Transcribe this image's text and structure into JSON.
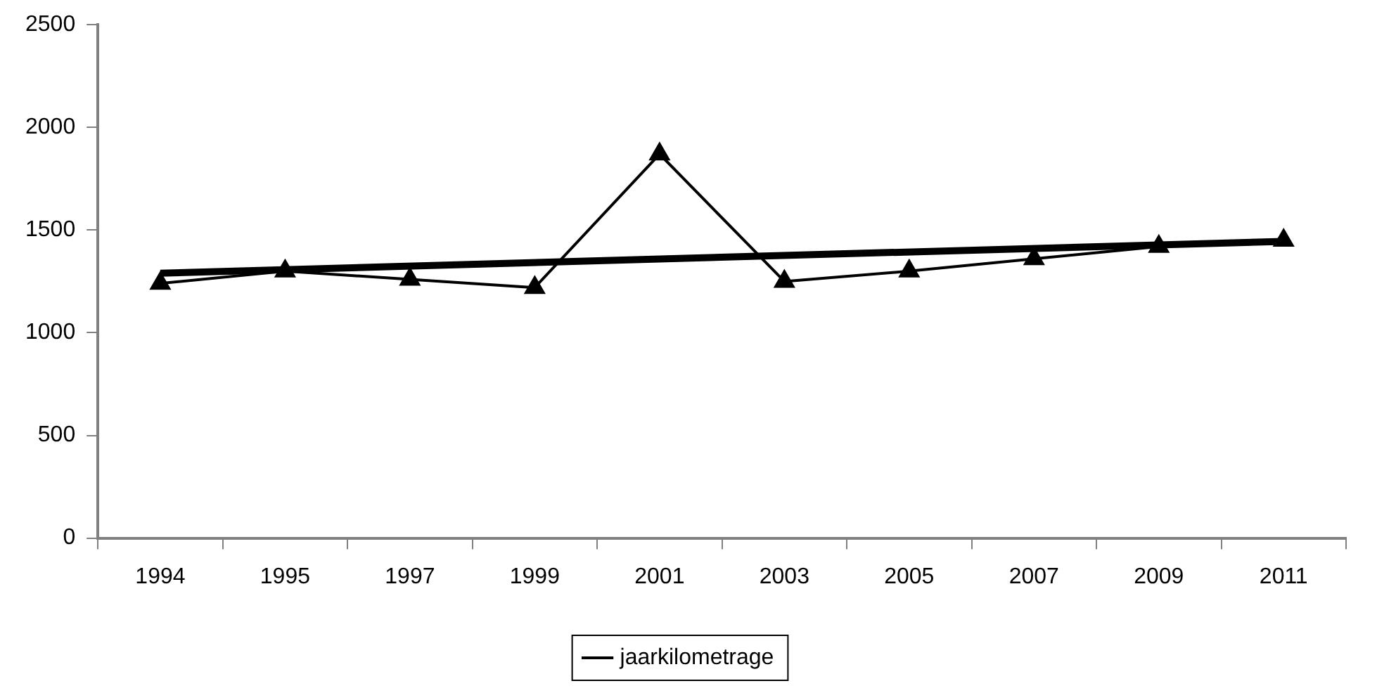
{
  "chart_data": {
    "type": "line",
    "categories": [
      "1994",
      "1995",
      "1997",
      "1999",
      "2001",
      "2003",
      "2005",
      "2007",
      "2009",
      "2011"
    ],
    "series": [
      {
        "name": "jaarkilometrage",
        "color": "#000000",
        "marker": "triangle",
        "values": [
          1240,
          1300,
          1260,
          1220,
          1870,
          1250,
          1300,
          1360,
          1420,
          1450
        ]
      },
      {
        "color": "#000000",
        "marker": "none",
        "values": [
          1290,
          null,
          null,
          null,
          null,
          null,
          null,
          null,
          null,
          1445
        ]
      }
    ],
    "ylim": [
      0,
      2500
    ],
    "yticks": [
      0,
      500,
      1000,
      1500,
      2000,
      2500
    ],
    "grid": false,
    "legend": "bottom"
  }
}
